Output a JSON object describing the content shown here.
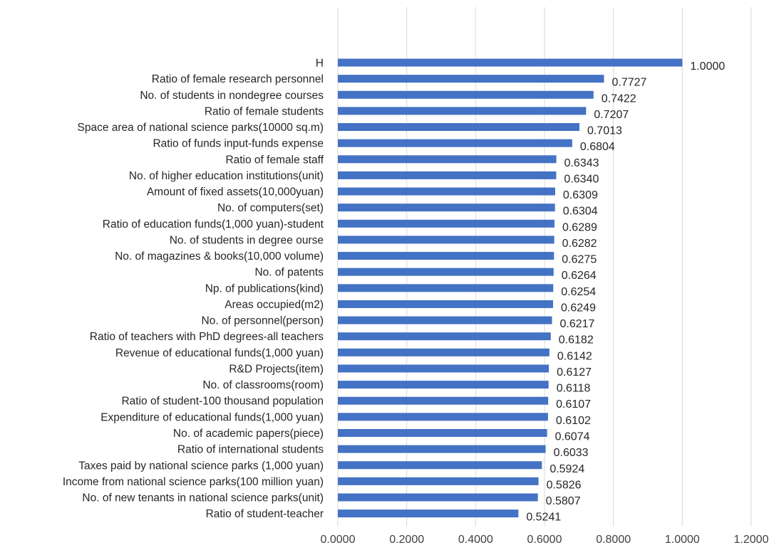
{
  "chart_data": {
    "type": "bar",
    "orientation": "horizontal",
    "title": "",
    "xlabel": "",
    "ylabel": "",
    "xlim": [
      0,
      1.2
    ],
    "x_ticks": [
      "0.0000",
      "0.2000",
      "0.4000",
      "0.6000",
      "0.8000",
      "1.0000",
      "1.2000"
    ],
    "grid": true,
    "bar_color": "#4472c4",
    "categories": [
      "H",
      "Ratio of female research personnel",
      "No. of students in nondegree courses",
      "Ratio of female students",
      "Space area of national science parks(10000 sq.m)",
      "Ratio of funds input-funds expense",
      "Ratio of female staff",
      "No. of higher education institutions(unit)",
      "Amount of fixed assets(10,000yuan)",
      "No. of computers(set)",
      "Ratio of education funds(1,000 yuan)-student",
      "No. of students in degree ourse",
      "No. of magazines & books(10,000 volume)",
      "No. of patents",
      "Np. of publications(kind)",
      "Areas occupied(m2)",
      "No. of personnel(person)",
      "Ratio of teachers with PhD degrees-all teachers",
      "Revenue of educational funds(1,000 yuan)",
      "R&D Projects(item)",
      "No. of classrooms(room)",
      "Ratio of student-100 thousand population",
      "Expenditure of educational funds(1,000 yuan)",
      "No. of academic papers(piece)",
      "Ratio of international students",
      "Taxes paid by national science parks (1,000 yuan)",
      "Income from national science parks(100 million yuan)",
      "No. of new tenants in national science parks(unit)",
      "Ratio of student-teacher"
    ],
    "values": [
      1.0,
      0.7727,
      0.7422,
      0.7207,
      0.7013,
      0.6804,
      0.6343,
      0.634,
      0.6309,
      0.6304,
      0.6289,
      0.6282,
      0.6275,
      0.6264,
      0.6254,
      0.6249,
      0.6217,
      0.6182,
      0.6142,
      0.6127,
      0.6118,
      0.6107,
      0.6102,
      0.6074,
      0.6033,
      0.5924,
      0.5826,
      0.5807,
      0.5241
    ],
    "value_labels": [
      "1.0000",
      "0.7727",
      "0.7422",
      "0.7207",
      "0.7013",
      "0.6804",
      "0.6343",
      "0.6340",
      "0.6309",
      "0.6304",
      "0.6289",
      "0.6282",
      "0.6275",
      "0.6264",
      "0.6254",
      "0.6249",
      "0.6217",
      "0.6182",
      "0.6142",
      "0.6127",
      "0.6118",
      "0.6107",
      "0.6102",
      "0.6074",
      "0.6033",
      "0.5924",
      "0.5826",
      "0.5807",
      "0.5241"
    ]
  }
}
